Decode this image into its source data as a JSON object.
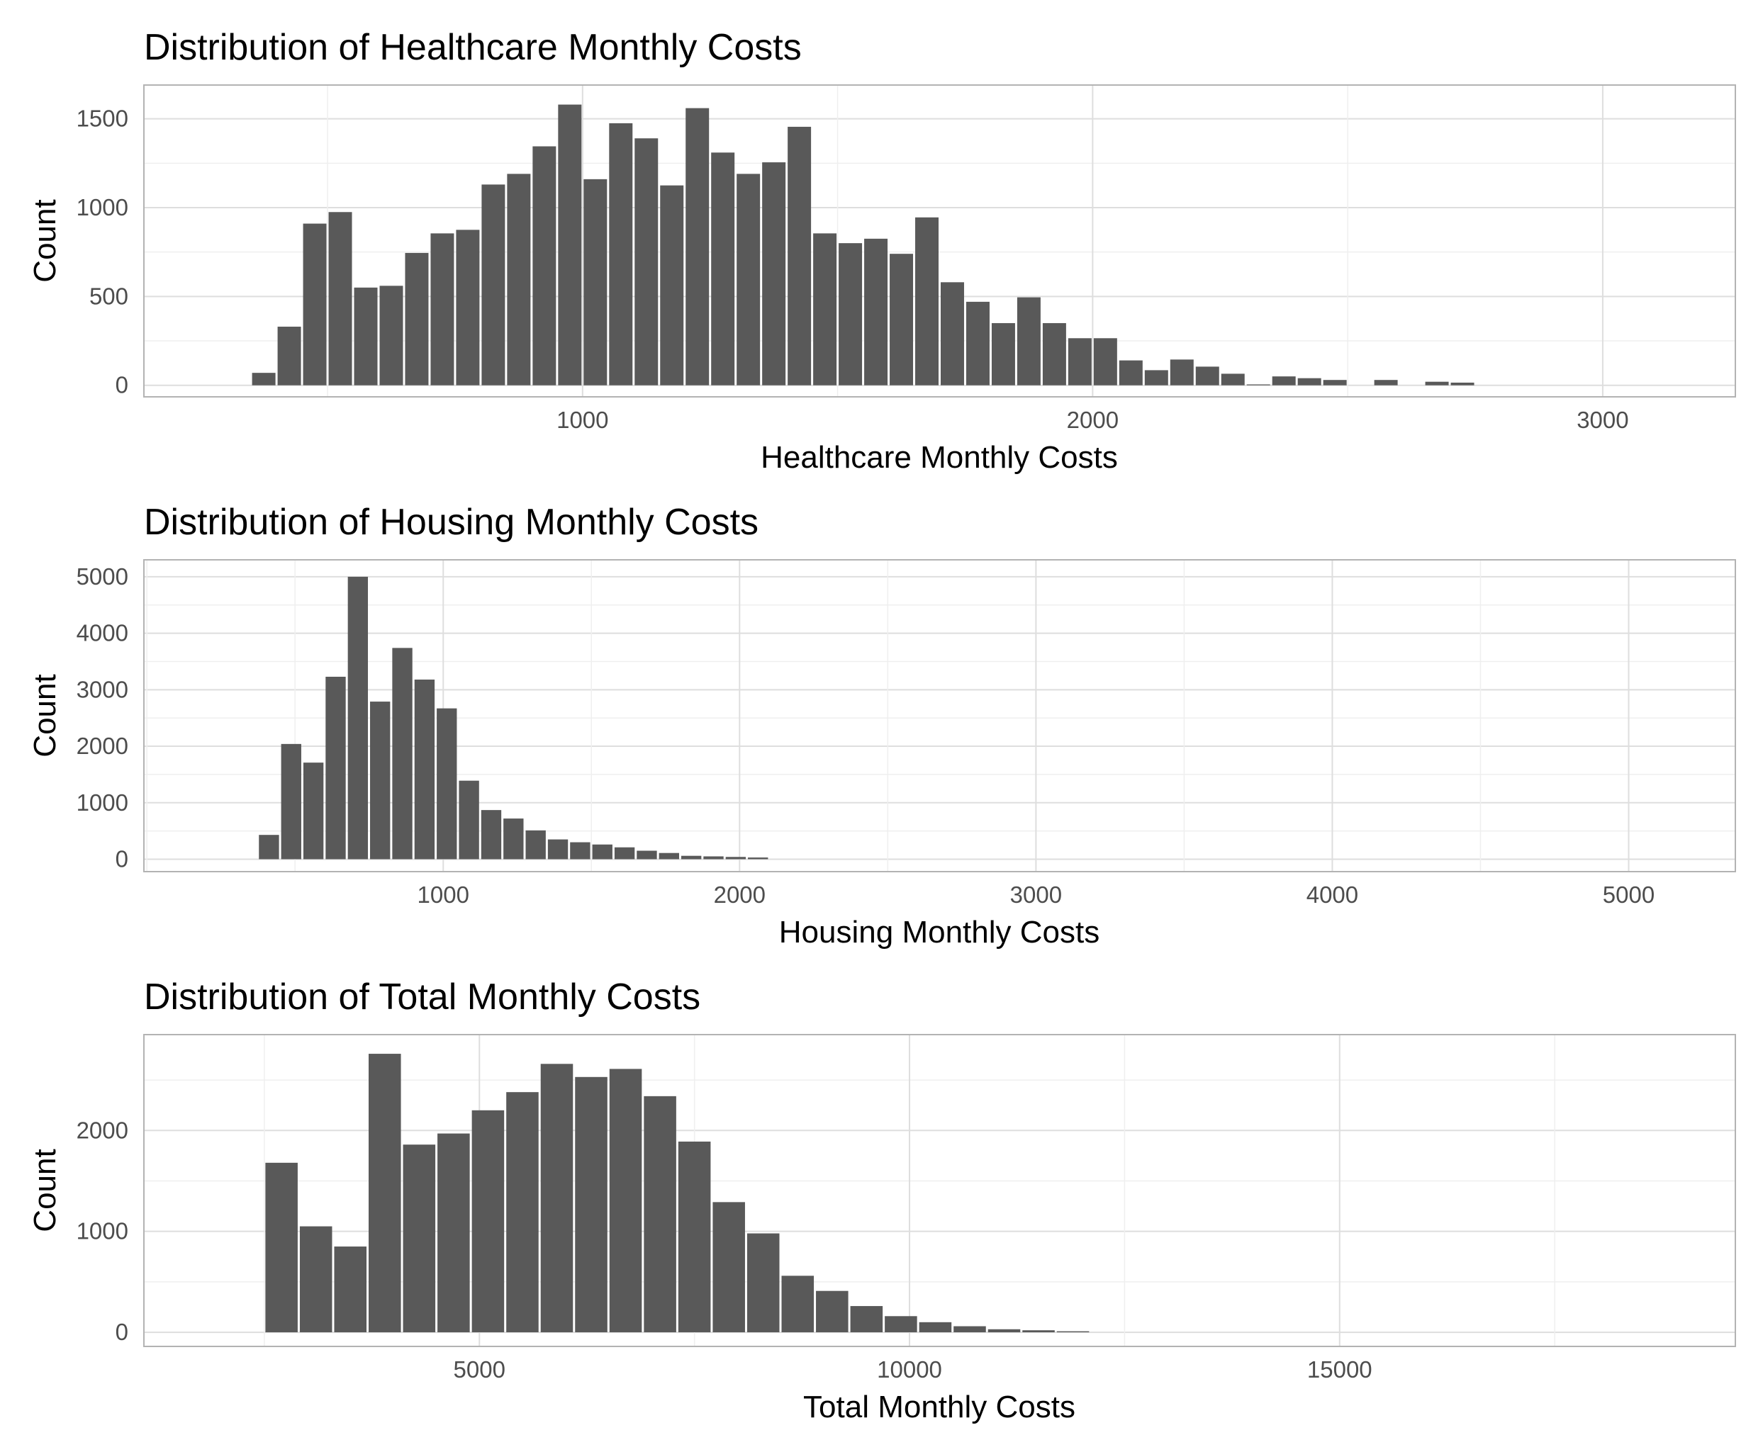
{
  "chart_data": [
    {
      "type": "bar",
      "title": "Distribution of Healthcare Monthly Costs",
      "xlabel": "Healthcare Monthly Costs",
      "ylabel": "Count",
      "xlim": [
        140,
        3260
      ],
      "ylim": [
        -65,
        1690
      ],
      "x_ticks": [
        1000,
        2000,
        3000
      ],
      "y_ticks": [
        0,
        500,
        1000,
        1500
      ],
      "bin_width": 50,
      "grid": true,
      "bins": [
        {
          "x": 375,
          "count": 70
        },
        {
          "x": 425,
          "count": 330
        },
        {
          "x": 475,
          "count": 910
        },
        {
          "x": 525,
          "count": 975
        },
        {
          "x": 575,
          "count": 550
        },
        {
          "x": 625,
          "count": 560
        },
        {
          "x": 675,
          "count": 745
        },
        {
          "x": 725,
          "count": 855
        },
        {
          "x": 775,
          "count": 875
        },
        {
          "x": 825,
          "count": 1130
        },
        {
          "x": 875,
          "count": 1190
        },
        {
          "x": 925,
          "count": 1345
        },
        {
          "x": 975,
          "count": 1580
        },
        {
          "x": 1025,
          "count": 1160
        },
        {
          "x": 1075,
          "count": 1475
        },
        {
          "x": 1125,
          "count": 1390
        },
        {
          "x": 1175,
          "count": 1125
        },
        {
          "x": 1225,
          "count": 1560
        },
        {
          "x": 1275,
          "count": 1310
        },
        {
          "x": 1325,
          "count": 1190
        },
        {
          "x": 1375,
          "count": 1255
        },
        {
          "x": 1425,
          "count": 1455
        },
        {
          "x": 1475,
          "count": 855
        },
        {
          "x": 1525,
          "count": 800
        },
        {
          "x": 1575,
          "count": 825
        },
        {
          "x": 1625,
          "count": 740
        },
        {
          "x": 1675,
          "count": 945
        },
        {
          "x": 1725,
          "count": 580
        },
        {
          "x": 1775,
          "count": 470
        },
        {
          "x": 1825,
          "count": 350
        },
        {
          "x": 1875,
          "count": 495
        },
        {
          "x": 1925,
          "count": 350
        },
        {
          "x": 1975,
          "count": 265
        },
        {
          "x": 2025,
          "count": 265
        },
        {
          "x": 2075,
          "count": 140
        },
        {
          "x": 2125,
          "count": 85
        },
        {
          "x": 2175,
          "count": 145
        },
        {
          "x": 2225,
          "count": 105
        },
        {
          "x": 2275,
          "count": 65
        },
        {
          "x": 2325,
          "count": 5
        },
        {
          "x": 2375,
          "count": 50
        },
        {
          "x": 2425,
          "count": 40
        },
        {
          "x": 2475,
          "count": 30
        },
        {
          "x": 2575,
          "count": 30
        },
        {
          "x": 2675,
          "count": 20
        },
        {
          "x": 2725,
          "count": 15
        }
      ]
    },
    {
      "type": "bar",
      "title": "Distribution of Housing Monthly Costs",
      "xlabel": "Housing Monthly Costs",
      "ylabel": "Count",
      "xlim": [
        -10,
        5360
      ],
      "ylim": [
        -220,
        5300
      ],
      "x_ticks": [
        1000,
        2000,
        3000,
        4000,
        5000
      ],
      "y_ticks": [
        0,
        1000,
        2000,
        3000,
        4000,
        5000
      ],
      "bin_width": 75,
      "grid": true,
      "bins": [
        {
          "x": 412,
          "count": 430
        },
        {
          "x": 487,
          "count": 2040
        },
        {
          "x": 562,
          "count": 1710
        },
        {
          "x": 637,
          "count": 3230
        },
        {
          "x": 712,
          "count": 5000
        },
        {
          "x": 787,
          "count": 2790
        },
        {
          "x": 862,
          "count": 3740
        },
        {
          "x": 937,
          "count": 3180
        },
        {
          "x": 1012,
          "count": 2670
        },
        {
          "x": 1087,
          "count": 1390
        },
        {
          "x": 1162,
          "count": 870
        },
        {
          "x": 1237,
          "count": 720
        },
        {
          "x": 1312,
          "count": 510
        },
        {
          "x": 1387,
          "count": 350
        },
        {
          "x": 1462,
          "count": 300
        },
        {
          "x": 1537,
          "count": 260
        },
        {
          "x": 1612,
          "count": 210
        },
        {
          "x": 1687,
          "count": 150
        },
        {
          "x": 1762,
          "count": 110
        },
        {
          "x": 1837,
          "count": 60
        },
        {
          "x": 1912,
          "count": 50
        },
        {
          "x": 1987,
          "count": 40
        },
        {
          "x": 2062,
          "count": 30
        }
      ]
    },
    {
      "type": "bar",
      "title": "Distribution of Total Monthly Costs",
      "xlabel": "Total Monthly Costs",
      "ylabel": "Count",
      "xlim": [
        1100,
        19600
      ],
      "ylim": [
        -140,
        2950
      ],
      "x_ticks": [
        5000,
        10000,
        15000
      ],
      "y_ticks": [
        0,
        1000,
        2000
      ],
      "bin_width": 400,
      "grid": true,
      "bins": [
        {
          "x": 2700,
          "count": 1680
        },
        {
          "x": 3100,
          "count": 1050
        },
        {
          "x": 3500,
          "count": 850
        },
        {
          "x": 3900,
          "count": 2760
        },
        {
          "x": 4300,
          "count": 1860
        },
        {
          "x": 4700,
          "count": 1970
        },
        {
          "x": 5100,
          "count": 2200
        },
        {
          "x": 5500,
          "count": 2380
        },
        {
          "x": 5900,
          "count": 2660
        },
        {
          "x": 6300,
          "count": 2530
        },
        {
          "x": 6700,
          "count": 2610
        },
        {
          "x": 7100,
          "count": 2340
        },
        {
          "x": 7500,
          "count": 1890
        },
        {
          "x": 7900,
          "count": 1290
        },
        {
          "x": 8300,
          "count": 980
        },
        {
          "x": 8700,
          "count": 560
        },
        {
          "x": 9100,
          "count": 410
        },
        {
          "x": 9500,
          "count": 260
        },
        {
          "x": 9900,
          "count": 160
        },
        {
          "x": 10300,
          "count": 100
        },
        {
          "x": 10700,
          "count": 60
        },
        {
          "x": 11100,
          "count": 30
        },
        {
          "x": 11500,
          "count": 20
        },
        {
          "x": 11900,
          "count": 10
        }
      ]
    }
  ]
}
